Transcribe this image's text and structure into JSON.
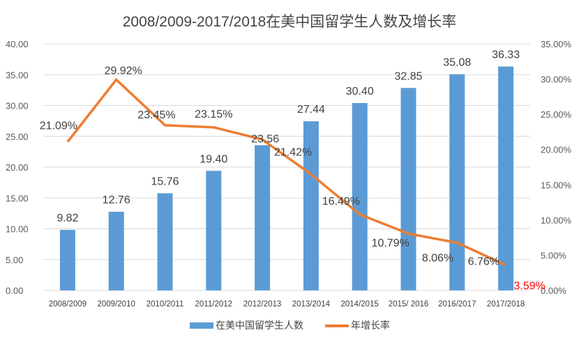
{
  "chart_data": {
    "type": "bar+line",
    "title": "2008/2009-2017/2018在美中国留学生人数及增长率",
    "categories": [
      "2008/2009",
      "2009/2010",
      "2010/2011",
      "2011/2012",
      "2012/2013",
      "2013/2014",
      "2014/2015",
      "2015/ 2016",
      "2016/2017",
      "2017/2018"
    ],
    "series": [
      {
        "name": "在美中国留学生人数",
        "type": "bar",
        "axis": "left",
        "color": "#5b9bd5",
        "values": [
          9.82,
          12.76,
          15.76,
          19.4,
          23.56,
          27.44,
          30.4,
          32.85,
          35.08,
          36.33
        ],
        "labels": [
          "9.82",
          "12.76",
          "15.76",
          "19.40",
          "23.56",
          "27.44",
          "30.40",
          "32.85",
          "35.08",
          "36.33"
        ]
      },
      {
        "name": "年增长率",
        "type": "line",
        "axis": "right",
        "color": "#ed7d31",
        "values": [
          21.09,
          29.92,
          23.45,
          23.15,
          21.42,
          16.49,
          10.79,
          8.06,
          6.76,
          3.59
        ],
        "labels": [
          "21.09%",
          "29.92%",
          "23.45%",
          "23.15%",
          "21.42%",
          "16.49%",
          "10.79%",
          "8.06%",
          "6.76%",
          "3.59%"
        ]
      }
    ],
    "left_axis": {
      "min": 0,
      "max": 40,
      "ticks": [
        "0.00",
        "5.00",
        "10.00",
        "15.00",
        "20.00",
        "25.00",
        "30.00",
        "35.00",
        "40.00"
      ]
    },
    "right_axis": {
      "min": 0,
      "max": 35,
      "ticks": [
        "0.00%",
        "5.00%",
        "10.00%",
        "15.00%",
        "20.00%",
        "25.00%",
        "30.00%",
        "35.00%"
      ]
    },
    "grid": true,
    "legend": "bottom",
    "highlight_label_color": "#ff0000"
  }
}
